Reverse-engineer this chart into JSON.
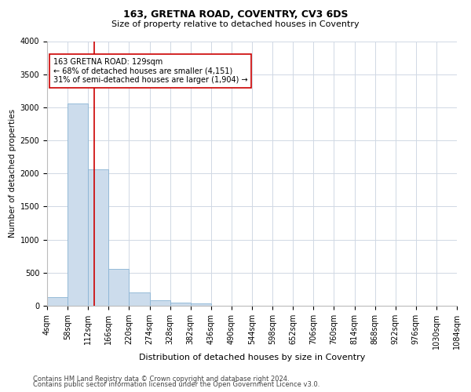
{
  "title1": "163, GRETNA ROAD, COVENTRY, CV3 6DS",
  "title2": "Size of property relative to detached houses in Coventry",
  "xlabel": "Distribution of detached houses by size in Coventry",
  "ylabel": "Number of detached properties",
  "annotation_line1": "163 GRETNA ROAD: 129sqm",
  "annotation_line2": "← 68% of detached houses are smaller (4,151)",
  "annotation_line3": "31% of semi-detached houses are larger (1,904) →",
  "property_size": 129,
  "bin_edges": [
    4,
    58,
    112,
    166,
    220,
    274,
    328,
    382,
    436,
    490,
    544,
    598,
    652,
    706,
    760,
    814,
    868,
    922,
    976,
    1030,
    1084
  ],
  "bar_heights": [
    130,
    3060,
    2060,
    560,
    200,
    80,
    50,
    40,
    0,
    0,
    0,
    0,
    0,
    0,
    0,
    0,
    0,
    0,
    0,
    0
  ],
  "bar_color": "#ccdcec",
  "bar_edge_color": "#8ab4d4",
  "red_line_color": "#cc0000",
  "grid_color": "#d0d8e4",
  "bg_color": "#ffffff",
  "footnote1": "Contains HM Land Registry data © Crown copyright and database right 2024.",
  "footnote2": "Contains public sector information licensed under the Open Government Licence v3.0.",
  "title1_fontsize": 9,
  "title2_fontsize": 8,
  "xlabel_fontsize": 8,
  "ylabel_fontsize": 7.5,
  "tick_fontsize": 7,
  "ytick_fontsize": 7,
  "annotation_fontsize": 7,
  "footnote_fontsize": 6
}
